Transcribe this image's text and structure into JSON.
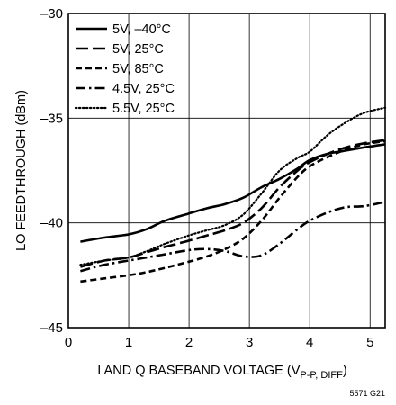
{
  "chart_data": {
    "type": "line",
    "title": "",
    "xlabel_main": "I AND Q BASEBAND VOLTAGE (V",
    "xlabel_sub": "P-P, DIFF",
    "xlabel_close": ")",
    "ylabel": "LO FEEDTHROUGH (dBm)",
    "xlim": [
      0,
      5.25
    ],
    "ylim": [
      -45,
      -30
    ],
    "x_ticks": [
      0,
      1,
      2,
      3,
      4,
      5
    ],
    "y_ticks": [
      -45,
      -40,
      -35,
      -30
    ],
    "x_tick_labels": [
      "0",
      "1",
      "2",
      "3",
      "4",
      "5"
    ],
    "y_tick_labels": [
      "–45",
      "–40",
      "–35",
      "–30"
    ],
    "grid": true,
    "legend_position": "top-left",
    "figure_id": "5571 G21",
    "series": [
      {
        "name": "5V, –40°C",
        "style": "solid",
        "points": [
          [
            0.2,
            -40.9
          ],
          [
            0.6,
            -40.7
          ],
          [
            1.0,
            -40.55
          ],
          [
            1.3,
            -40.3
          ],
          [
            1.6,
            -39.9
          ],
          [
            2.0,
            -39.55
          ],
          [
            2.3,
            -39.3
          ],
          [
            2.6,
            -39.1
          ],
          [
            2.9,
            -38.8
          ],
          [
            3.2,
            -38.3
          ],
          [
            3.5,
            -37.9
          ],
          [
            3.8,
            -37.4
          ],
          [
            4.0,
            -37.0
          ],
          [
            4.3,
            -36.7
          ],
          [
            4.6,
            -36.55
          ],
          [
            4.9,
            -36.4
          ],
          [
            5.25,
            -36.25
          ]
        ]
      },
      {
        "name": "5V, 25°C",
        "style": "long-dash",
        "points": [
          [
            0.2,
            -42.1
          ],
          [
            0.6,
            -41.8
          ],
          [
            1.0,
            -41.65
          ],
          [
            1.3,
            -41.4
          ],
          [
            1.6,
            -41.15
          ],
          [
            2.0,
            -40.85
          ],
          [
            2.3,
            -40.6
          ],
          [
            2.6,
            -40.35
          ],
          [
            2.9,
            -40.0
          ],
          [
            3.2,
            -39.3
          ],
          [
            3.5,
            -38.3
          ],
          [
            3.8,
            -37.5
          ],
          [
            4.0,
            -37.1
          ],
          [
            4.3,
            -36.7
          ],
          [
            4.6,
            -36.4
          ],
          [
            4.9,
            -36.2
          ],
          [
            5.25,
            -36.05
          ]
        ]
      },
      {
        "name": "5V, 85°C",
        "style": "dash",
        "points": [
          [
            0.2,
            -42.8
          ],
          [
            0.6,
            -42.65
          ],
          [
            1.0,
            -42.5
          ],
          [
            1.3,
            -42.35
          ],
          [
            1.6,
            -42.15
          ],
          [
            2.0,
            -41.85
          ],
          [
            2.3,
            -41.6
          ],
          [
            2.6,
            -41.25
          ],
          [
            2.9,
            -40.75
          ],
          [
            3.2,
            -39.9
          ],
          [
            3.5,
            -38.8
          ],
          [
            3.8,
            -37.8
          ],
          [
            4.0,
            -37.3
          ],
          [
            4.3,
            -36.85
          ],
          [
            4.6,
            -36.5
          ],
          [
            4.9,
            -36.25
          ],
          [
            5.25,
            -36.1
          ]
        ]
      },
      {
        "name": "4.5V, 25°C",
        "style": "dash-dot",
        "points": [
          [
            0.2,
            -42.3
          ],
          [
            0.6,
            -42.0
          ],
          [
            1.0,
            -41.8
          ],
          [
            1.3,
            -41.65
          ],
          [
            1.6,
            -41.5
          ],
          [
            2.0,
            -41.3
          ],
          [
            2.3,
            -41.25
          ],
          [
            2.6,
            -41.35
          ],
          [
            2.9,
            -41.6
          ],
          [
            3.2,
            -41.55
          ],
          [
            3.5,
            -41.0
          ],
          [
            3.8,
            -40.3
          ],
          [
            4.0,
            -39.9
          ],
          [
            4.3,
            -39.5
          ],
          [
            4.6,
            -39.25
          ],
          [
            4.9,
            -39.2
          ],
          [
            5.25,
            -39.0
          ]
        ]
      },
      {
        "name": "5.5V, 25°C",
        "style": "dot",
        "points": [
          [
            0.2,
            -42.0
          ],
          [
            0.6,
            -41.8
          ],
          [
            1.0,
            -41.65
          ],
          [
            1.3,
            -41.35
          ],
          [
            1.6,
            -41.0
          ],
          [
            2.0,
            -40.6
          ],
          [
            2.3,
            -40.35
          ],
          [
            2.6,
            -40.1
          ],
          [
            2.9,
            -39.6
          ],
          [
            3.2,
            -38.6
          ],
          [
            3.5,
            -37.5
          ],
          [
            3.8,
            -36.9
          ],
          [
            4.0,
            -36.6
          ],
          [
            4.3,
            -35.8
          ],
          [
            4.6,
            -35.2
          ],
          [
            4.9,
            -34.75
          ],
          [
            5.25,
            -34.5
          ]
        ]
      }
    ]
  }
}
